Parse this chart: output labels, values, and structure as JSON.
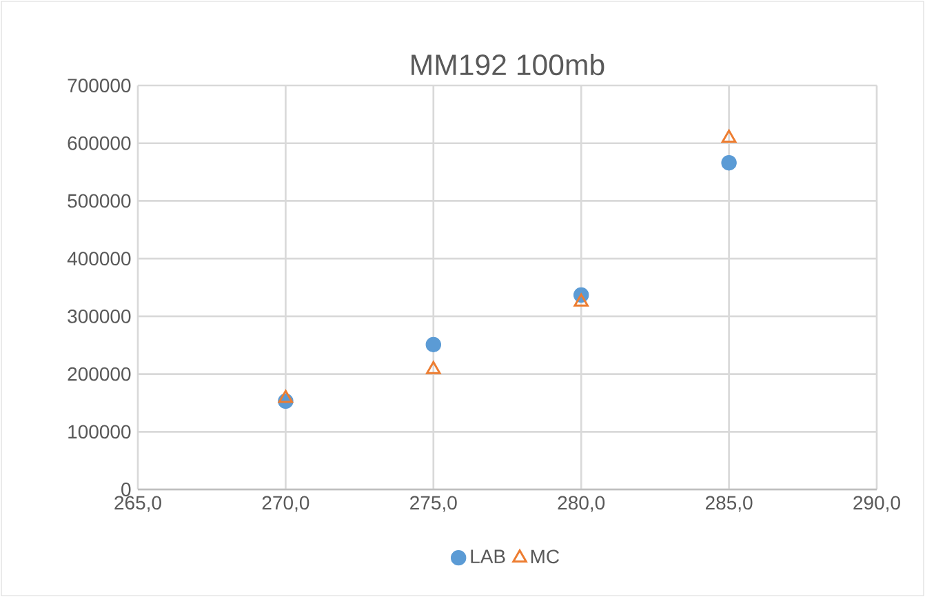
{
  "chart_data": {
    "type": "scatter",
    "title": "MM192 100mb",
    "series": [
      {
        "name": "LAB",
        "color": "#5b9bd5",
        "marker": "circle",
        "x": [
          270,
          275,
          280,
          285
        ],
        "values": [
          153000,
          251000,
          337000,
          566000
        ]
      },
      {
        "name": "MC",
        "color": "#ed7d31",
        "marker": "triangle",
        "x": [
          270,
          275,
          280,
          285
        ],
        "values": [
          158000,
          208000,
          325000,
          609000
        ]
      }
    ],
    "xlim": [
      265,
      290
    ],
    "xticks": [
      {
        "value": 265,
        "label": "265,0"
      },
      {
        "value": 270,
        "label": "270,0"
      },
      {
        "value": 275,
        "label": "275,0"
      },
      {
        "value": 280,
        "label": "280,0"
      },
      {
        "value": 285,
        "label": "285,0"
      },
      {
        "value": 290,
        "label": "290,0"
      }
    ],
    "ylim": [
      0,
      700000
    ],
    "yticks": [
      0,
      100000,
      200000,
      300000,
      400000,
      500000,
      600000,
      700000
    ],
    "grid": true,
    "legend": "bottom"
  }
}
